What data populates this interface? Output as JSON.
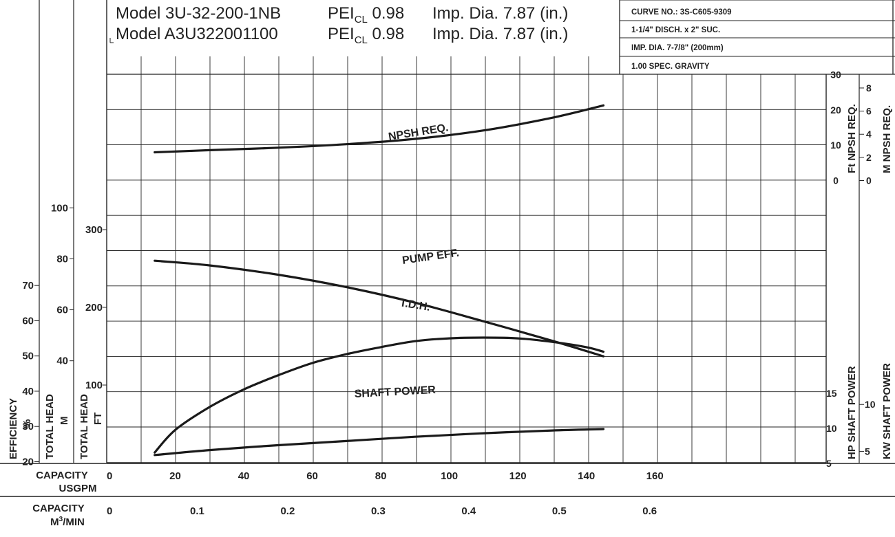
{
  "header": {
    "models": [
      {
        "model": "Model 3U-32-200-1NB",
        "pei": "PEI",
        "pei_sub": "CL",
        "pei_val": "0.98",
        "dia": "Imp. Dia. 7.87 (in.)"
      },
      {
        "model": "Model A3U322001100",
        "pei": "PEI",
        "pei_sub": "CL",
        "pei_val": "0.98",
        "dia": "Imp. Dia. 7.87 (in.)"
      }
    ],
    "info": [
      "CURVE NO.: 3S-C605-9309",
      "1-1/4\" DISCH. x 2\" SUC.",
      "IMP. DIA. 7-7/8\" (200mm)",
      "1.00 SPEC. GRAVITY"
    ]
  },
  "axes": {
    "x_usgpm": {
      "label1": "CAPACITY",
      "label2": "USGPM",
      "ticks": [
        "0",
        "20",
        "40",
        "60",
        "80",
        "100",
        "120",
        "140",
        "160"
      ],
      "range": [
        0,
        210
      ]
    },
    "x_m3": {
      "label1": "CAPACITY",
      "label2": "M",
      "label2_sup": "3",
      "label2_tail": "/MIN",
      "ticks": [
        "0",
        "0.1",
        "0.2",
        "0.3",
        "0.4",
        "0.5",
        "0.6"
      ],
      "tick_values": [
        0,
        0.1,
        0.2,
        0.3,
        0.4,
        0.5,
        0.6
      ]
    },
    "efficiency": {
      "label": "EFFICIENCY",
      "unit": "%",
      "ticks": [
        "20",
        "30",
        "40",
        "50",
        "60",
        "70"
      ],
      "tick_values": [
        20,
        30,
        40,
        50,
        60,
        70
      ]
    },
    "head_m": {
      "label": "TOTAL HEAD",
      "unit": "M",
      "ticks": [
        "40",
        "60",
        "80",
        "100"
      ],
      "tick_values": [
        40,
        60,
        80,
        100
      ]
    },
    "head_ft": {
      "label": "TOTAL HEAD",
      "unit": "FT",
      "ticks": [
        "100",
        "200",
        "300"
      ],
      "tick_values": [
        100,
        200,
        300
      ],
      "range": [
        0,
        500
      ]
    },
    "npsh_ft": {
      "label": "Ft NPSH REQ.",
      "ticks": [
        "0",
        "10",
        "20",
        "30"
      ],
      "tick_values": [
        0,
        10,
        20,
        30
      ]
    },
    "npsh_m": {
      "label": "M NPSH REQ.",
      "ticks": [
        "0",
        "2",
        "4",
        "6",
        "8"
      ],
      "tick_values": [
        0,
        2,
        4,
        6,
        8
      ]
    },
    "hp": {
      "label": "HP SHAFT POWER",
      "ticks": [
        "5",
        "10",
        "15"
      ],
      "tick_values": [
        5,
        10,
        15
      ]
    },
    "kw": {
      "label": "KW SHAFT POWER",
      "ticks": [
        "5",
        "10"
      ],
      "tick_values": [
        5,
        10
      ]
    }
  },
  "chart_data": {
    "type": "line",
    "x_unit": "USGPM",
    "xlim": [
      0,
      210
    ],
    "grid": true,
    "series": [
      {
        "name": "NPSH REQ.",
        "axis": "npsh_ft",
        "x": [
          14,
          30,
          50,
          70,
          90,
          110,
          130,
          145
        ],
        "y": [
          8.0,
          8.6,
          9.3,
          10.3,
          11.8,
          14.2,
          17.8,
          21.3
        ]
      },
      {
        "name": "PUMP EFF.",
        "axis": "efficiency",
        "x": [
          14,
          20,
          30,
          40,
          50,
          60,
          70,
          80,
          90,
          100,
          110,
          120,
          130,
          140,
          145
        ],
        "y": [
          22.6,
          29.0,
          35.5,
          40.5,
          44.5,
          48.0,
          50.5,
          52.5,
          54.2,
          55.0,
          55.2,
          55.0,
          54.0,
          52.5,
          51.2
        ]
      },
      {
        "name": "T.D.H.",
        "axis": "head_ft",
        "x": [
          14,
          30,
          50,
          70,
          90,
          110,
          130,
          145
        ],
        "y": [
          260,
          254,
          242,
          226,
          206,
          182,
          157,
          137
        ]
      },
      {
        "name": "SHAFT POWER",
        "axis": "hp",
        "x": [
          14,
          30,
          50,
          70,
          90,
          110,
          130,
          145
        ],
        "y": [
          6.2,
          6.9,
          7.6,
          8.2,
          8.8,
          9.3,
          9.7,
          9.9
        ]
      }
    ]
  }
}
